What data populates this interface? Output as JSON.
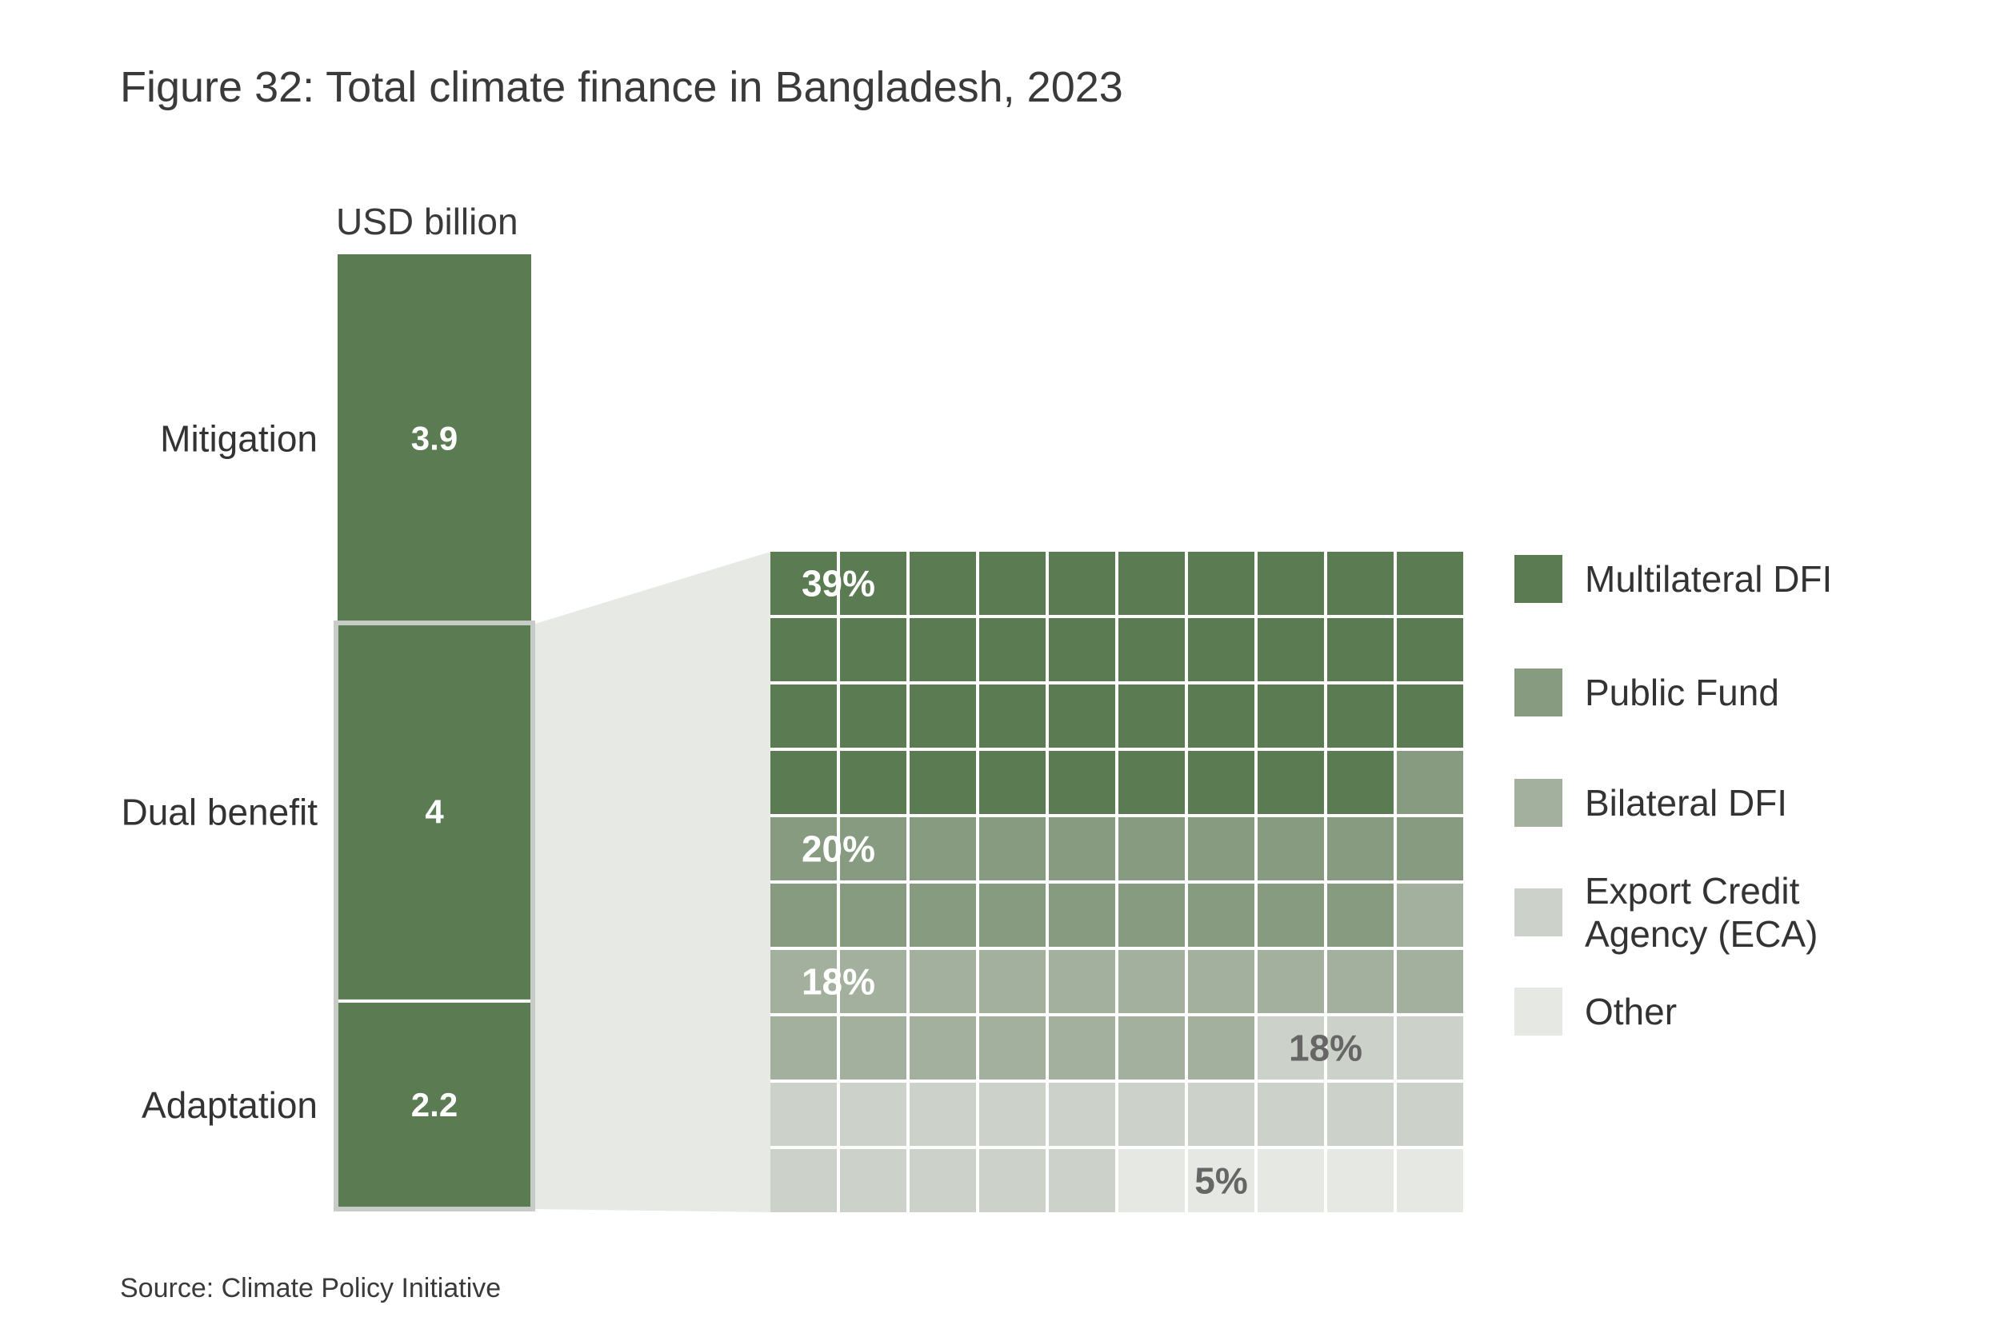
{
  "title": "Figure 32: Total climate finance in Bangladesh, 2023",
  "source": "Source: Climate Policy Initiative",
  "chart_data": [
    {
      "type": "bar",
      "stacked": true,
      "ylabel": "USD billion",
      "categories": [
        "Mitigation",
        "Dual benefit",
        "Adaptation"
      ],
      "values": [
        3.9,
        4,
        2.2
      ],
      "value_labels": [
        "3.9",
        "4",
        "2.2"
      ],
      "highlighted": [
        "Dual benefit",
        "Adaptation"
      ],
      "color": "#5b7b53"
    },
    {
      "type": "waffle",
      "grid": {
        "rows": 10,
        "cols": 10
      },
      "categories": [
        "Multilateral DFI",
        "Public Fund",
        "Bilateral DFI",
        "Export Credit Agency (ECA)",
        "Other"
      ],
      "legend_labels": [
        [
          "Multilateral DFI"
        ],
        [
          "Public Fund"
        ],
        [
          "Bilateral DFI"
        ],
        [
          "Export Credit",
          "Agency (ECA)"
        ],
        [
          "Other"
        ]
      ],
      "values": [
        39,
        20,
        18,
        18,
        5
      ],
      "value_labels": [
        "39%",
        "20%",
        "18%",
        "18%",
        "5%"
      ],
      "colors": [
        "#5b7b53",
        "#879b80",
        "#a3b09d",
        "#ccd2c9",
        "#e5e8e3"
      ],
      "label_colors": [
        "#ffffff",
        "#ffffff",
        "#ffffff",
        "#666666",
        "#666666"
      ],
      "legend_position": "right"
    }
  ]
}
